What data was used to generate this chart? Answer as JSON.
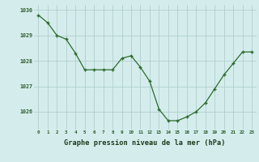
{
  "x": [
    0,
    1,
    2,
    3,
    4,
    5,
    6,
    7,
    8,
    9,
    10,
    11,
    12,
    13,
    14,
    15,
    16,
    17,
    18,
    19,
    20,
    21,
    22,
    23
  ],
  "y": [
    1029.8,
    1029.5,
    1029.0,
    1028.85,
    1028.3,
    1027.65,
    1027.65,
    1027.65,
    1027.65,
    1028.1,
    1028.2,
    1027.75,
    1027.2,
    1026.1,
    1025.65,
    1025.65,
    1025.8,
    1026.0,
    1026.35,
    1026.9,
    1027.45,
    1027.9,
    1028.35,
    1028.35
  ],
  "line_color": "#2d6a2d",
  "marker_color": "#2d6a2d",
  "bg_plot": "#d4edec",
  "bg_figure": "#d4edec",
  "grid_color": "#b0cece",
  "xlabel": "Graphe pression niveau de la mer (hPa)",
  "xlabel_color": "#1a3a1a",
  "tick_label_color": "#2d5a2d",
  "xlim": [
    -0.5,
    23.5
  ],
  "ylim": [
    1025.3,
    1030.2
  ],
  "yticks": [
    1026,
    1027,
    1028,
    1029,
    1030
  ],
  "xticks": [
    0,
    1,
    2,
    3,
    4,
    5,
    6,
    7,
    8,
    9,
    10,
    11,
    12,
    13,
    14,
    15,
    16,
    17,
    18,
    19,
    20,
    21,
    22,
    23
  ],
  "xtick_labels": [
    "0",
    "1",
    "2",
    "3",
    "4",
    "5",
    "6",
    "7",
    "8",
    "9",
    "10",
    "11",
    "12",
    "13",
    "14",
    "15",
    "16",
    "17",
    "18",
    "19",
    "20",
    "21",
    "22",
    "23"
  ]
}
